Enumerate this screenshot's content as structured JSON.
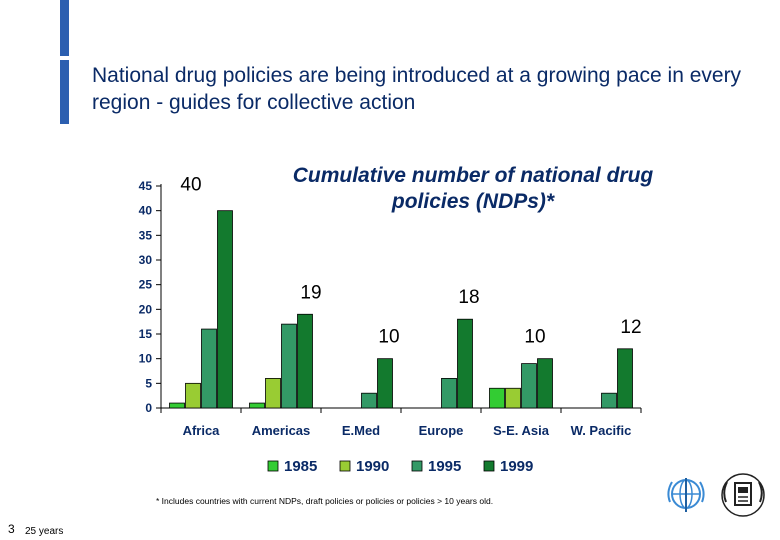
{
  "slide": {
    "title": "National drug policies are being introduced at a growing pace in every region - guides for collective action",
    "footnote": "* Includes countries with current NDPs, draft policies or policies or policies > 10 years old.",
    "slide_number": "3",
    "tagline": "25 years"
  },
  "logos": [
    "who-emblem",
    "organization-emblem"
  ],
  "chart_data": {
    "type": "bar",
    "title": "Cumulative number of national drug policies (NDPs)*",
    "categories": [
      "Africa",
      "Americas",
      "E.Med",
      "Europe",
      "S-E. Asia",
      "W. Pacific"
    ],
    "series": [
      {
        "name": "1985",
        "color": "#33cc33",
        "values": [
          1,
          1,
          0,
          0,
          4,
          0
        ]
      },
      {
        "name": "1990",
        "color": "#99cc33",
        "values": [
          5,
          6,
          0,
          0,
          4,
          0
        ]
      },
      {
        "name": "1995",
        "color": "#339966",
        "values": [
          16,
          17,
          3,
          6,
          9,
          3
        ]
      },
      {
        "name": "1999",
        "color": "#137a2e",
        "values": [
          40,
          19,
          10,
          18,
          10,
          12
        ]
      }
    ],
    "data_labels": [
      "40",
      "19",
      "10",
      "18",
      "10",
      "12"
    ],
    "ylim": [
      0,
      45
    ],
    "yticks": [
      0,
      5,
      10,
      15,
      20,
      25,
      30,
      35,
      40,
      45
    ],
    "grid": false,
    "legend_position": "bottom"
  }
}
